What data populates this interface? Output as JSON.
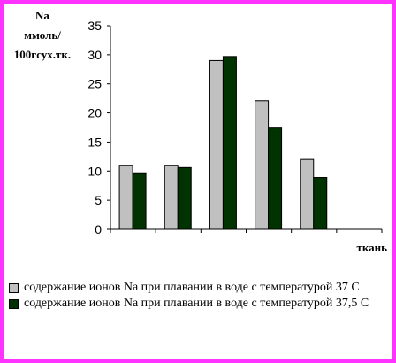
{
  "chart_data": {
    "type": "bar",
    "ylabel": [
      "Na",
      "ммоль/",
      "100гсух.тк."
    ],
    "xlabel": "ткань",
    "ylim": [
      0,
      35
    ],
    "yticks": [
      0,
      5,
      10,
      15,
      20,
      25,
      30,
      35
    ],
    "categories": [
      "",
      "",
      "",
      "",
      "",
      ""
    ],
    "series": [
      {
        "name": "содержание ионов Na при плавании в воде с температурой 37 С",
        "color": "#c0c0c0",
        "values": [
          11.0,
          11.0,
          29.0,
          22.1,
          12.0,
          null
        ]
      },
      {
        "name": "содержание ионов Na при плавании в воде с температурой 37,5 С",
        "color": "#003300",
        "values": [
          9.7,
          10.6,
          29.7,
          17.4,
          8.9,
          null
        ]
      }
    ],
    "grid": false,
    "legend_position": "bottom"
  }
}
